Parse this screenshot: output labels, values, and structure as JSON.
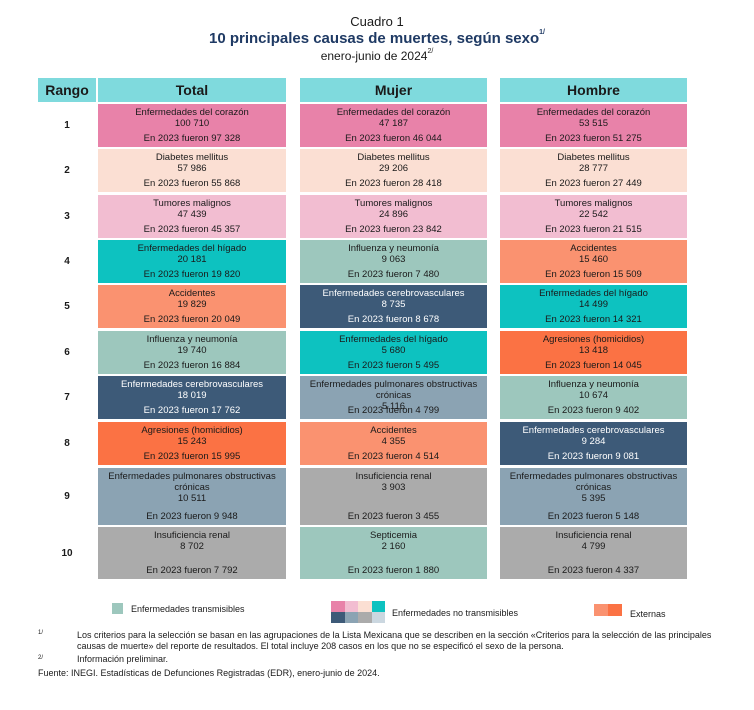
{
  "header": {
    "caption": "Cuadro 1",
    "title": "10 principales causas de muertes, según sexo",
    "title_sup": "1/",
    "subtitle": "enero-junio de 2024",
    "subtitle_sup": "2/"
  },
  "columns": {
    "rank": "Rango",
    "total": "Total",
    "mujer": "Mujer",
    "hombre": "Hombre"
  },
  "colors": {
    "corazon": "#e882a9",
    "diabetes": "#fbdfd3",
    "tumores": "#f2bdd1",
    "higado": "#0dc2c0",
    "accidentes": "#fa9270",
    "influenza": "#9dc7bd",
    "cerebro": "#3d5a78",
    "agresiones": "#fb7244",
    "pulmonares": "#8ba3b3",
    "renal": "#ababab",
    "septicemia": "#9dc7bd"
  },
  "rows": [
    {
      "rank": "1",
      "total": {
        "name": "Enfermedades del corazón",
        "value": "100 710",
        "prev": "En 2023 fueron 97 328",
        "color": "corazon"
      },
      "mujer": {
        "name": "Enfermedades del corazón",
        "value": "47 187",
        "prev": "En 2023 fueron 46 044",
        "color": "corazon"
      },
      "hombre": {
        "name": "Enfermedades del corazón",
        "value": "53 515",
        "prev": "En 2023 fueron 51 275",
        "color": "corazon"
      }
    },
    {
      "rank": "2",
      "total": {
        "name": "Diabetes mellitus",
        "value": "57 986",
        "prev": "En 2023 fueron 55 868",
        "color": "diabetes"
      },
      "mujer": {
        "name": "Diabetes mellitus",
        "value": "29 206",
        "prev": "En 2023 fueron 28 418",
        "color": "diabetes"
      },
      "hombre": {
        "name": "Diabetes mellitus",
        "value": "28 777",
        "prev": "En 2023 fueron 27 449",
        "color": "diabetes"
      }
    },
    {
      "rank": "3",
      "total": {
        "name": "Tumores malignos",
        "value": "47 439",
        "prev": "En 2023 fueron 45 357",
        "color": "tumores"
      },
      "mujer": {
        "name": "Tumores malignos",
        "value": "24 896",
        "prev": "En 2023 fueron 23 842",
        "color": "tumores"
      },
      "hombre": {
        "name": "Tumores malignos",
        "value": "22 542",
        "prev": "En 2023 fueron 21 515",
        "color": "tumores"
      }
    },
    {
      "rank": "4",
      "total": {
        "name": "Enfermedades del hígado",
        "value": "20 181",
        "prev": "En 2023 fueron 19 820",
        "color": "higado"
      },
      "mujer": {
        "name": "Influenza y neumonía",
        "value": "9 063",
        "prev": "En 2023 fueron 7 480",
        "color": "influenza"
      },
      "hombre": {
        "name": "Accidentes",
        "value": "15 460",
        "prev": "En 2023 fueron 15 509",
        "color": "accidentes"
      }
    },
    {
      "rank": "5",
      "total": {
        "name": "Accidentes",
        "value": "19 829",
        "prev": "En 2023 fueron 20 049",
        "color": "accidentes"
      },
      "mujer": {
        "name": "Enfermedades cerebrovasculares",
        "value": "8 735",
        "prev": "En 2023 fueron 8 678",
        "color": "cerebro"
      },
      "hombre": {
        "name": "Enfermedades del hígado",
        "value": "14 499",
        "prev": "En 2023 fueron 14 321",
        "color": "higado"
      }
    },
    {
      "rank": "6",
      "total": {
        "name": "Influenza y neumonía",
        "value": "19 740",
        "prev": "En 2023 fueron 16 884",
        "color": "influenza"
      },
      "mujer": {
        "name": "Enfermedades del hígado",
        "value": "5 680",
        "prev": "En 2023 fueron 5 495",
        "color": "higado"
      },
      "hombre": {
        "name": "Agresiones (homicidios)",
        "value": "13 418",
        "prev": "En 2023 fueron 14 045",
        "color": "agresiones"
      }
    },
    {
      "rank": "7",
      "total": {
        "name": "Enfermedades cerebrovasculares",
        "value": "18 019",
        "prev": "En 2023 fueron 17 762",
        "color": "cerebro"
      },
      "mujer": {
        "name": "Enfermedades pulmonares obstructivas crónicas",
        "value": "5 116",
        "prev": "En 2023 fueron 4 799",
        "color": "pulmonares"
      },
      "hombre": {
        "name": "Influenza y neumonía",
        "value": "10 674",
        "prev": "En 2023 fueron 9 402",
        "color": "influenza"
      }
    },
    {
      "rank": "8",
      "total": {
        "name": "Agresiones (homicidios)",
        "value": "15 243",
        "prev": "En 2023 fueron 15 995",
        "color": "agresiones"
      },
      "mujer": {
        "name": "Accidentes",
        "value": "4 355",
        "prev": "En 2023 fueron 4 514",
        "color": "accidentes"
      },
      "hombre": {
        "name": "Enfermedades cerebrovasculares",
        "value": "9 284",
        "prev": "En 2023 fueron 9 081",
        "color": "cerebro"
      }
    },
    {
      "rank": "9",
      "total": {
        "name": "Enfermedades pulmonares obstructivas crónicas",
        "value": "10 511",
        "prev": "En 2023 fueron 9 948",
        "color": "pulmonares"
      },
      "mujer": {
        "name": "Insuficiencia renal",
        "value": "3 903",
        "prev": "En 2023 fueron 3 455",
        "color": "renal"
      },
      "hombre": {
        "name": "Enfermedades pulmonares obstructivas crónicas",
        "value": "5 395",
        "prev": "En 2023 fueron 5 148",
        "color": "pulmonares"
      }
    },
    {
      "rank": "10",
      "total": {
        "name": "Insuficiencia renal",
        "value": "8 702",
        "prev": "En 2023 fueron 7 792",
        "color": "renal"
      },
      "mujer": {
        "name": "Septicemia",
        "value": "2 160",
        "prev": "En 2023 fueron 1 880",
        "color": "septicemia"
      },
      "hombre": {
        "name": "Insuficiencia renal",
        "value": "4 799",
        "prev": "En 2023 fueron 4 337",
        "color": "renal"
      }
    }
  ],
  "legend": {
    "transmisibles": "Enfermedades transmisibles",
    "no_transmisibles": "Enfermedades no transmisibles",
    "externas": "Externas",
    "transmisibles_color": "#9dc7bd",
    "no_trans_colors": [
      "#e882a9",
      "#f2bdd1",
      "#fbdfd3",
      "#0dc2c0",
      "#3d5a78",
      "#8ba3b3",
      "#ababab",
      "#cbd7e0"
    ],
    "externas_colors": [
      "#fa9270",
      "#fb7244"
    ]
  },
  "notes": {
    "n1_label": "1/",
    "n1_text": "Los criterios para la selección se basan en las agrupaciones de la Lista Mexicana que se describen en la sección «Criterios para la selección de las principales causas de muerte» del reporte de resultados. El total incluye 208 casos en los que no se especificó el sexo de la persona.",
    "n2_label": "2/",
    "n2_text": "Información preliminar.",
    "source": "Fuente: INEGI. Estadísticas de Defunciones Registradas (EDR), enero-junio de 2024."
  }
}
